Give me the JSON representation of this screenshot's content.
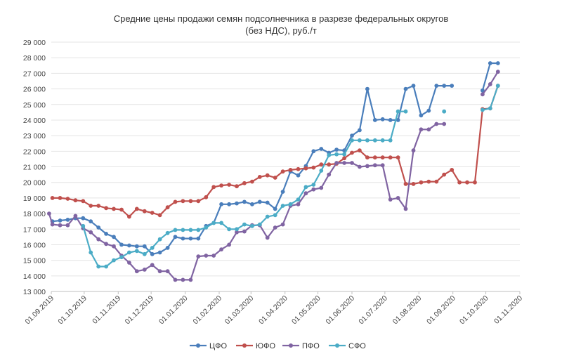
{
  "chart_data": {
    "type": "line",
    "title": "Средние цены продажи семян подсолнечника  в разрезе  федеральных округов",
    "subtitle": "(без НДС), руб./т",
    "xlabel": "",
    "ylabel": "",
    "ylim": [
      13000,
      29000
    ],
    "xlim": [
      "2019-09-01",
      "2020-11-01"
    ],
    "y_ticks": [
      "13 000",
      "14 000",
      "15 000",
      "16 000",
      "17 000",
      "18 000",
      "19 000",
      "20 000",
      "21 000",
      "22 000",
      "23 000",
      "24 000",
      "25 000",
      "26 000",
      "27 000",
      "28 000",
      "29 000"
    ],
    "x_ticks": [
      {
        "label": "01.09.2019",
        "date": "2019-09-01"
      },
      {
        "label": "01.10.2019",
        "date": "2019-10-01"
      },
      {
        "label": "01.11.2019",
        "date": "2019-11-01"
      },
      {
        "label": "01.12.2019",
        "date": "2019-12-01"
      },
      {
        "label": "01.01.2020",
        "date": "2020-01-01"
      },
      {
        "label": "01.02.2020",
        "date": "2020-02-01"
      },
      {
        "label": "01.03.2020",
        "date": "2020-03-01"
      },
      {
        "label": "01.04.2020",
        "date": "2020-04-01"
      },
      {
        "label": "01.05.2020",
        "date": "2020-05-01"
      },
      {
        "label": "01.06.2020",
        "date": "2020-06-01"
      },
      {
        "label": "01.07.2020",
        "date": "2020-07-01"
      },
      {
        "label": "01.08.2020",
        "date": "2020-08-01"
      },
      {
        "label": "01.09.2020",
        "date": "2020-09-01"
      },
      {
        "label": "01.10.2020",
        "date": "2020-10-01"
      },
      {
        "label": "01.11.2020",
        "date": "2020-11-01"
      }
    ],
    "grid": "horizontal",
    "legend_position": "bottom",
    "series": [
      {
        "name": "ЦФО",
        "color": "#4a7ebb",
        "points": [
          [
            "2019-09-02",
            17500
          ],
          [
            "2019-09-09",
            17550
          ],
          [
            "2019-09-16",
            17600
          ],
          [
            "2019-09-23",
            17700
          ],
          [
            "2019-09-30",
            17700
          ],
          [
            "2019-10-07",
            17500
          ],
          [
            "2019-10-14",
            17100
          ],
          [
            "2019-10-21",
            16700
          ],
          [
            "2019-10-28",
            16500
          ],
          [
            "2019-11-04",
            16000
          ],
          [
            "2019-11-11",
            15950
          ],
          [
            "2019-11-18",
            15900
          ],
          [
            "2019-11-25",
            15900
          ],
          [
            "2019-12-02",
            15400
          ],
          [
            "2019-12-09",
            15500
          ],
          [
            "2019-12-16",
            15800
          ],
          [
            "2019-12-23",
            16500
          ],
          [
            "2019-12-30",
            16400
          ],
          [
            "2020-01-06",
            16400
          ],
          [
            "2020-01-13",
            16400
          ],
          [
            "2020-01-20",
            17200
          ],
          [
            "2020-01-27",
            17400
          ],
          [
            "2020-02-03",
            18600
          ],
          [
            "2020-02-10",
            18600
          ],
          [
            "2020-02-17",
            18650
          ],
          [
            "2020-02-24",
            18750
          ],
          [
            "2020-03-02",
            18600
          ],
          [
            "2020-03-09",
            18750
          ],
          [
            "2020-03-16",
            18700
          ],
          [
            "2020-03-23",
            18300
          ],
          [
            "2020-03-30",
            19400
          ],
          [
            "2020-04-06",
            20700
          ],
          [
            "2020-04-13",
            20450
          ],
          [
            "2020-04-20",
            21050
          ],
          [
            "2020-04-27",
            22000
          ],
          [
            "2020-05-04",
            22150
          ],
          [
            "2020-05-11",
            21900
          ],
          [
            "2020-05-18",
            22100
          ],
          [
            "2020-05-25",
            22050
          ],
          [
            "2020-06-01",
            23000
          ],
          [
            "2020-06-08",
            23350
          ],
          [
            "2020-06-15",
            26000
          ],
          [
            "2020-06-22",
            24000
          ],
          [
            "2020-06-29",
            24050
          ],
          [
            "2020-07-06",
            24000
          ],
          [
            "2020-07-13",
            24000
          ],
          [
            "2020-07-20",
            26000
          ],
          [
            "2020-07-27",
            26200
          ],
          [
            "2020-08-03",
            24300
          ],
          [
            "2020-08-10",
            24600
          ],
          [
            "2020-08-17",
            26200
          ],
          [
            "2020-08-24",
            26200
          ],
          [
            "2020-08-31",
            26200
          ],
          null,
          [
            "2020-09-28",
            25900
          ],
          [
            "2020-10-05",
            27650
          ],
          [
            "2020-10-12",
            27650
          ]
        ]
      },
      {
        "name": "ЮФО",
        "color": "#c0504d",
        "points": [
          [
            "2019-09-02",
            19000
          ],
          [
            "2019-09-09",
            19000
          ],
          [
            "2019-09-16",
            18950
          ],
          [
            "2019-09-23",
            18850
          ],
          [
            "2019-09-30",
            18800
          ],
          [
            "2019-10-07",
            18500
          ],
          [
            "2019-10-14",
            18500
          ],
          [
            "2019-10-21",
            18350
          ],
          [
            "2019-10-28",
            18300
          ],
          [
            "2019-11-04",
            18250
          ],
          [
            "2019-11-11",
            17800
          ],
          [
            "2019-11-18",
            18300
          ],
          [
            "2019-11-25",
            18150
          ],
          [
            "2019-12-02",
            18050
          ],
          [
            "2019-12-09",
            17900
          ],
          [
            "2019-12-16",
            18400
          ],
          [
            "2019-12-23",
            18750
          ],
          [
            "2019-12-30",
            18800
          ],
          [
            "2020-01-06",
            18800
          ],
          [
            "2020-01-13",
            18800
          ],
          [
            "2020-01-20",
            19050
          ],
          [
            "2020-01-27",
            19700
          ],
          [
            "2020-02-03",
            19800
          ],
          [
            "2020-02-10",
            19850
          ],
          [
            "2020-02-17",
            19750
          ],
          [
            "2020-02-24",
            19950
          ],
          [
            "2020-03-02",
            20050
          ],
          [
            "2020-03-09",
            20350
          ],
          [
            "2020-03-16",
            20450
          ],
          [
            "2020-03-23",
            20300
          ],
          [
            "2020-03-30",
            20700
          ],
          [
            "2020-04-06",
            20800
          ],
          [
            "2020-04-13",
            20850
          ],
          [
            "2020-04-20",
            20900
          ],
          [
            "2020-04-27",
            20950
          ],
          [
            "2020-05-04",
            21150
          ],
          [
            "2020-05-11",
            21150
          ],
          [
            "2020-05-18",
            21200
          ],
          [
            "2020-05-25",
            21550
          ],
          [
            "2020-06-01",
            21900
          ],
          [
            "2020-06-08",
            22050
          ],
          [
            "2020-06-15",
            21600
          ],
          [
            "2020-06-22",
            21600
          ],
          [
            "2020-06-29",
            21600
          ],
          [
            "2020-07-06",
            21600
          ],
          [
            "2020-07-13",
            21600
          ],
          [
            "2020-07-20",
            19900
          ],
          [
            "2020-07-27",
            19900
          ],
          [
            "2020-08-03",
            20000
          ],
          [
            "2020-08-10",
            20050
          ],
          [
            "2020-08-17",
            20050
          ],
          [
            "2020-08-24",
            20500
          ],
          [
            "2020-08-31",
            20800
          ],
          [
            "2020-09-07",
            20000
          ],
          [
            "2020-09-14",
            20000
          ],
          [
            "2020-09-21",
            20000
          ],
          [
            "2020-09-28",
            24700
          ],
          [
            "2020-10-05",
            24750
          ],
          [
            "2020-10-12",
            26200
          ]
        ]
      },
      {
        "name": "ПФО",
        "color": "#8064a2",
        "points": [
          [
            "2019-08-30",
            18000
          ],
          [
            "2019-09-02",
            17300
          ],
          [
            "2019-09-09",
            17250
          ],
          [
            "2019-09-16",
            17250
          ],
          [
            "2019-09-23",
            17850
          ],
          [
            "2019-09-30",
            17050
          ],
          [
            "2019-10-07",
            16800
          ],
          [
            "2019-10-14",
            16350
          ],
          [
            "2019-10-21",
            16050
          ],
          [
            "2019-10-28",
            15900
          ],
          [
            "2019-11-04",
            15300
          ],
          [
            "2019-11-11",
            14850
          ],
          [
            "2019-11-18",
            14300
          ],
          [
            "2019-11-25",
            14400
          ],
          [
            "2019-12-02",
            14700
          ],
          [
            "2019-12-09",
            14300
          ],
          [
            "2019-12-16",
            14300
          ],
          [
            "2019-12-23",
            13750
          ],
          [
            "2019-12-30",
            13750
          ],
          [
            "2020-01-06",
            13750
          ],
          [
            "2020-01-13",
            15250
          ],
          [
            "2020-01-20",
            15300
          ],
          [
            "2020-01-27",
            15300
          ],
          [
            "2020-02-03",
            15700
          ],
          [
            "2020-02-10",
            16000
          ],
          [
            "2020-02-17",
            16800
          ],
          [
            "2020-02-24",
            16850
          ],
          [
            "2020-03-02",
            17250
          ],
          [
            "2020-03-09",
            17250
          ],
          [
            "2020-03-16",
            16450
          ],
          [
            "2020-03-23",
            17100
          ],
          [
            "2020-03-30",
            17300
          ],
          [
            "2020-04-06",
            18500
          ],
          [
            "2020-04-13",
            18600
          ],
          [
            "2020-04-20",
            19300
          ],
          [
            "2020-04-27",
            19550
          ],
          [
            "2020-05-04",
            19650
          ],
          [
            "2020-05-11",
            20500
          ],
          [
            "2020-05-18",
            21250
          ],
          [
            "2020-05-25",
            21250
          ],
          [
            "2020-06-01",
            21250
          ],
          [
            "2020-06-08",
            21000
          ],
          [
            "2020-06-15",
            21050
          ],
          [
            "2020-06-22",
            21100
          ],
          [
            "2020-06-29",
            21100
          ],
          [
            "2020-07-06",
            18900
          ],
          [
            "2020-07-13",
            19000
          ],
          [
            "2020-07-20",
            18300
          ],
          [
            "2020-07-27",
            22050
          ],
          [
            "2020-08-03",
            23400
          ],
          [
            "2020-08-10",
            23400
          ],
          [
            "2020-08-17",
            23750
          ],
          [
            "2020-08-24",
            23750
          ],
          null,
          [
            "2020-09-28",
            25650
          ],
          [
            "2020-10-05",
            26300
          ],
          [
            "2020-10-12",
            27100
          ]
        ]
      },
      {
        "name": "СФО",
        "color": "#4bacc6",
        "points": [
          [
            "2019-09-30",
            17200
          ],
          [
            "2019-10-07",
            15500
          ],
          [
            "2019-10-14",
            14600
          ],
          [
            "2019-10-21",
            14600
          ],
          [
            "2019-10-28",
            15000
          ],
          [
            "2019-11-04",
            15200
          ],
          [
            "2019-11-11",
            15500
          ],
          [
            "2019-11-18",
            15600
          ],
          [
            "2019-11-25",
            15400
          ],
          [
            "2019-12-02",
            15800
          ],
          [
            "2019-12-09",
            16350
          ],
          [
            "2019-12-16",
            16750
          ],
          [
            "2019-12-23",
            16950
          ],
          [
            "2019-12-30",
            16950
          ],
          [
            "2020-01-06",
            16950
          ],
          [
            "2020-01-13",
            16950
          ],
          [
            "2020-01-20",
            17100
          ],
          [
            "2020-01-27",
            17400
          ],
          [
            "2020-02-03",
            17400
          ],
          [
            "2020-02-10",
            17000
          ],
          [
            "2020-02-17",
            17000
          ],
          [
            "2020-02-24",
            17300
          ],
          [
            "2020-03-02",
            17200
          ],
          [
            "2020-03-09",
            17300
          ],
          [
            "2020-03-16",
            17800
          ],
          [
            "2020-03-23",
            17900
          ],
          [
            "2020-03-30",
            18500
          ],
          [
            "2020-04-06",
            18600
          ],
          [
            "2020-04-13",
            18900
          ],
          [
            "2020-04-20",
            19700
          ],
          [
            "2020-04-27",
            19850
          ],
          [
            "2020-05-04",
            20750
          ],
          [
            "2020-05-11",
            21750
          ],
          [
            "2020-05-18",
            21800
          ],
          [
            "2020-05-25",
            21800
          ],
          [
            "2020-06-01",
            22700
          ],
          [
            "2020-06-08",
            22700
          ],
          [
            "2020-06-15",
            22700
          ],
          [
            "2020-06-22",
            22700
          ],
          [
            "2020-06-29",
            22700
          ],
          [
            "2020-07-06",
            22700
          ],
          [
            "2020-07-13",
            24550
          ],
          [
            "2020-07-20",
            24550
          ],
          null,
          [
            "2020-08-24",
            24550
          ],
          null,
          [
            "2020-09-28",
            24650
          ],
          [
            "2020-10-05",
            24750
          ],
          [
            "2020-10-12",
            26200
          ]
        ]
      }
    ]
  }
}
